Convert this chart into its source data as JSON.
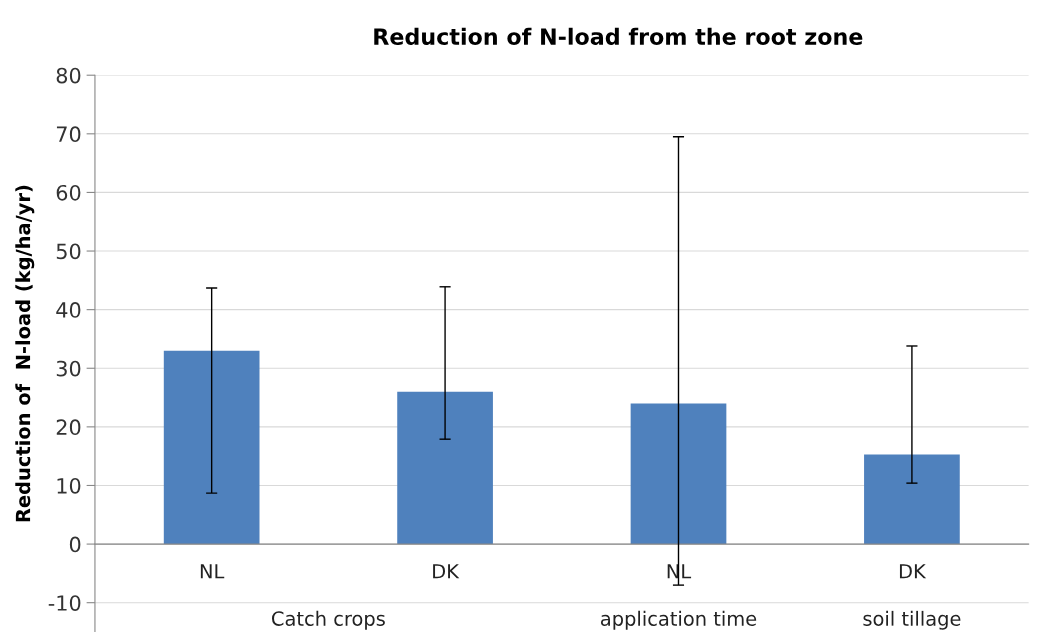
{
  "chart_data": {
    "type": "bar",
    "title": "Reduction of N-load from the root zone",
    "ylabel": "Reduction of  N-load (kg/ha/yr)",
    "categories": [
      "NL",
      "DK",
      "NL",
      "DK"
    ],
    "values": [
      33,
      26,
      24,
      15.3
    ],
    "errors": [
      [
        8.7,
        43.7
      ],
      [
        17.9,
        43.9
      ],
      [
        -7,
        69.5
      ],
      [
        10.4,
        33.8
      ]
    ],
    "color": "#4f81bd",
    "annotations": [
      "Catch crops",
      "application time",
      "soil tillage"
    ],
    "ylim": [
      -15,
      80
    ],
    "yticks": [
      -10,
      0,
      10,
      20,
      30,
      40,
      50,
      60,
      70,
      80
    ],
    "grid": "y"
  }
}
